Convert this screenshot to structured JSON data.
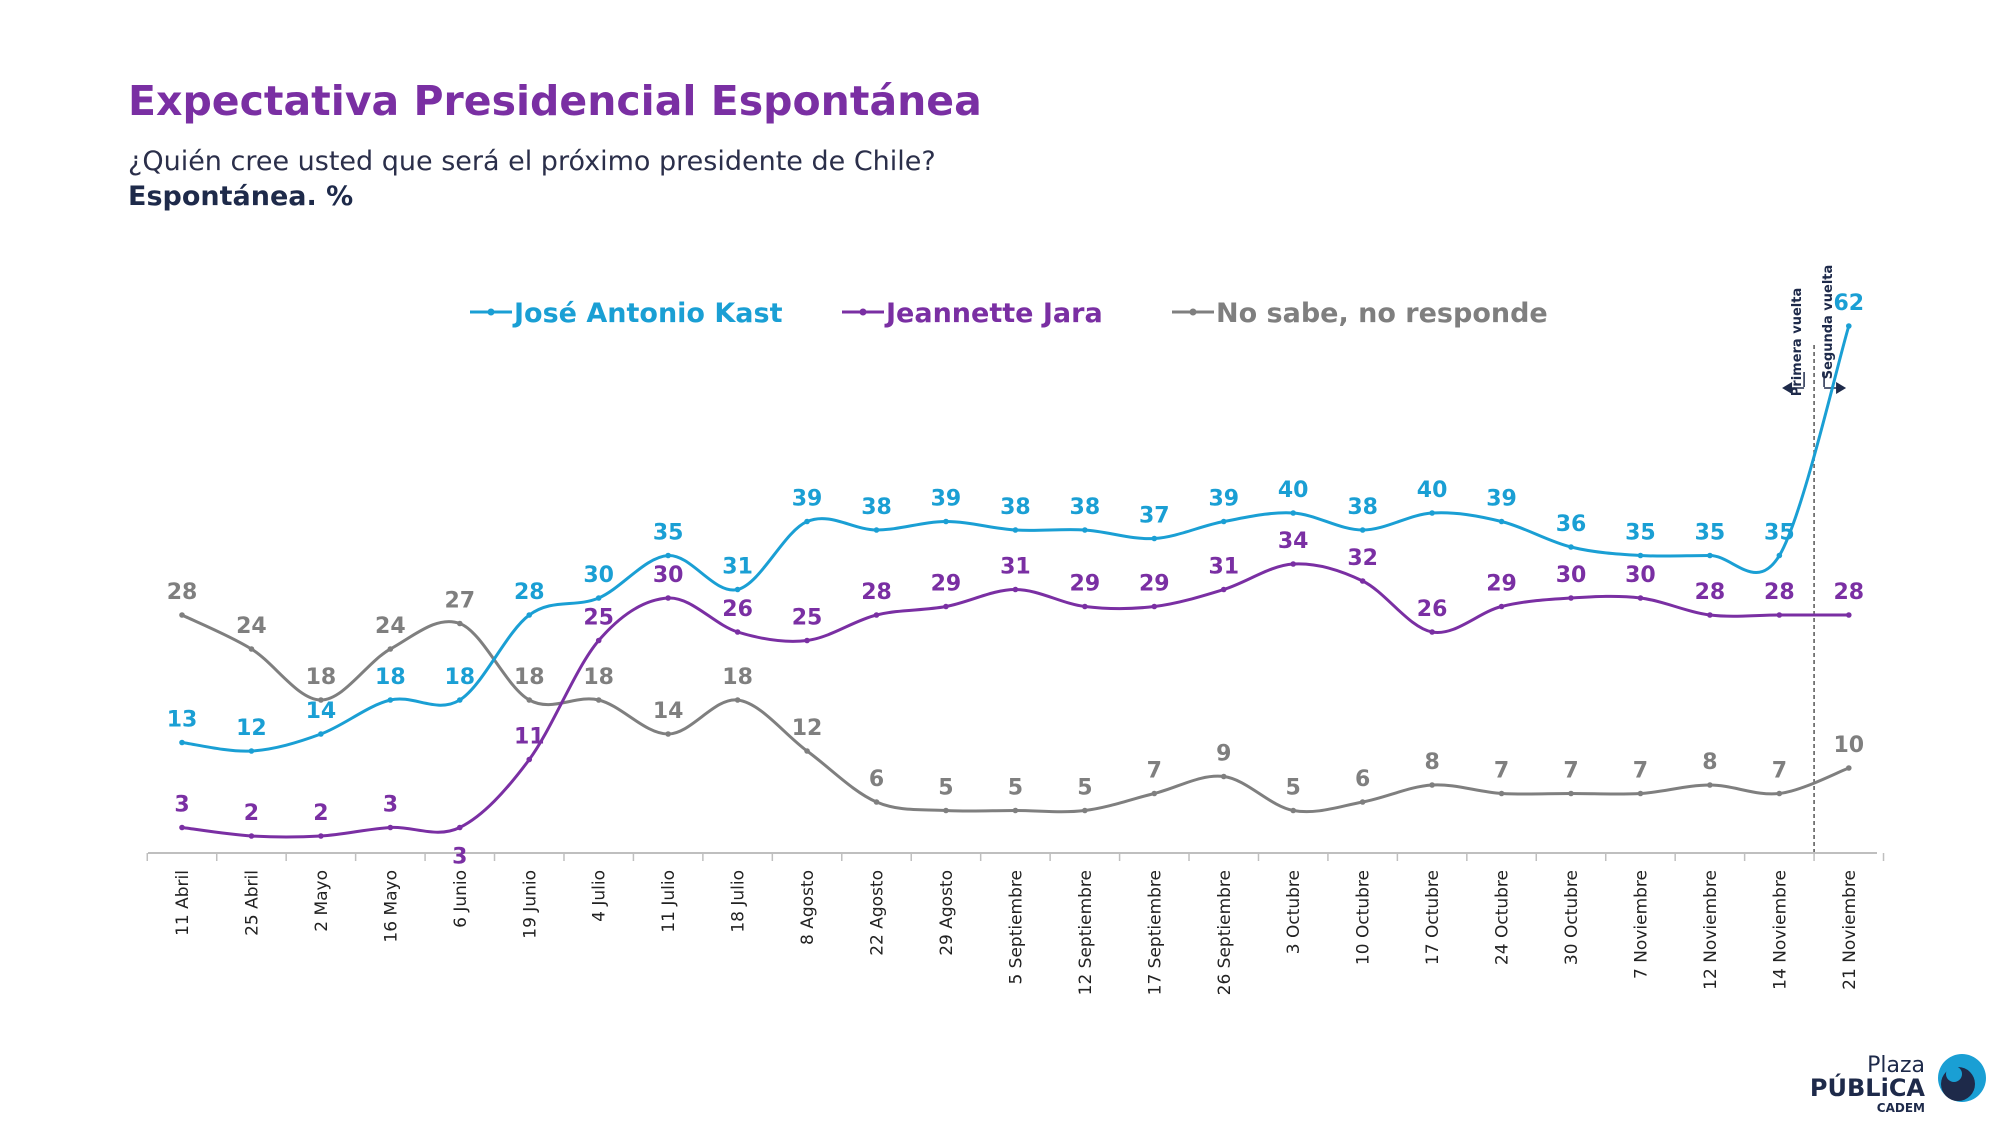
{
  "title": "Expectativa Presidencial Espontánea",
  "subtitle": "¿Quién cree usted que será el próximo presidente de Chile?",
  "unit_note": "Espontánea. %",
  "chart_data": {
    "type": "line",
    "categories": [
      "11 Abril",
      "25 Abril",
      "2 Mayo",
      "16 Mayo",
      "6 Junio",
      "19 Junio",
      "4 Julio",
      "11 Julio",
      "18 Julio",
      "8 Agosto",
      "22 Agosto",
      "29 Agosto",
      "5 Septiembre",
      "12 Septiembre",
      "17 Septiembre",
      "26 Septiembre",
      "3 Octubre",
      "10 Octubre",
      "17 Octubre",
      "24 Octubre",
      "30 Octubre",
      "7 Noviembre",
      "12 Noviembre",
      "14 Noviembre",
      "21 Noviembre"
    ],
    "series": [
      {
        "name": "José Antonio Kast",
        "color": "#1a9fd4",
        "values": [
          13,
          12,
          14,
          18,
          18,
          28,
          30,
          35,
          31,
          39,
          38,
          39,
          38,
          38,
          37,
          39,
          40,
          38,
          40,
          39,
          36,
          35,
          35,
          35,
          62
        ]
      },
      {
        "name": "Jeannette Jara",
        "color": "#7a2fa3",
        "values": [
          3,
          2,
          2,
          3,
          3,
          11,
          25,
          30,
          26,
          25,
          28,
          29,
          31,
          29,
          29,
          31,
          34,
          32,
          26,
          29,
          30,
          30,
          28,
          28,
          28
        ]
      },
      {
        "name": "No sabe, no responde",
        "color": "#7f7f7f",
        "values": [
          28,
          24,
          18,
          24,
          27,
          18,
          18,
          14,
          18,
          12,
          6,
          5,
          5,
          5,
          7,
          9,
          5,
          6,
          8,
          7,
          7,
          7,
          8,
          7,
          10
        ]
      }
    ],
    "ylim": [
      0,
      70
    ],
    "grid": false,
    "legend_position": "top-center",
    "annotations": [
      {
        "text": "Primera vuelta",
        "direction": "left"
      },
      {
        "text": "Segunda vuelta",
        "direction": "right"
      }
    ]
  },
  "logo": {
    "line1": "Plaza",
    "line2": "PÚBLiCA",
    "line3": "CADEM",
    "colors": {
      "brand": "#1e2a4a",
      "accent": "#1a9fd4"
    }
  }
}
